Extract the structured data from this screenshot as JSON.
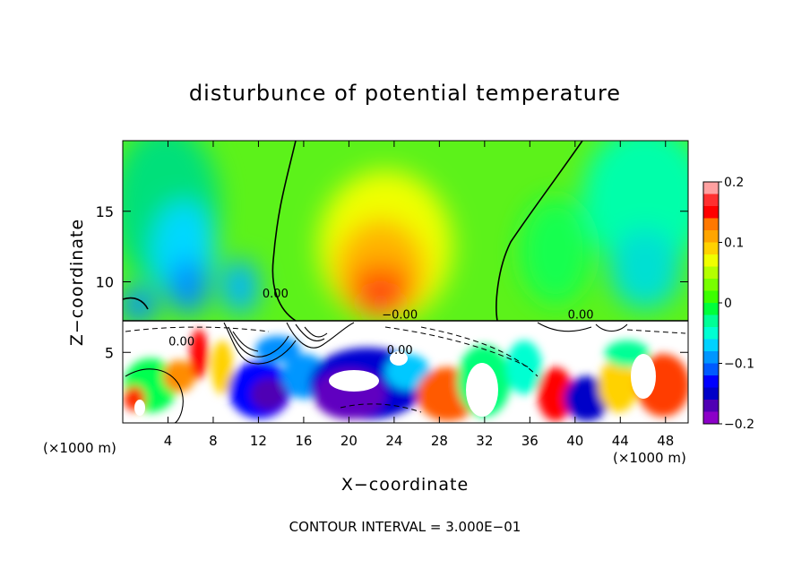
{
  "chart_data": {
    "type": "heatmap",
    "title": "disturbunce of potential temperature",
    "xlabel": "X−coordinate",
    "ylabel": "Z−coordinate",
    "x_unit_left": "(×1000 m)",
    "x_unit_right": "(×1000 m)",
    "xlim": [
      0,
      50
    ],
    "ylim": [
      0,
      20
    ],
    "x_ticks": [
      4,
      8,
      12,
      16,
      20,
      24,
      28,
      32,
      36,
      40,
      44,
      48
    ],
    "x_tick_labels": [
      "4",
      "8",
      "12",
      "16",
      "20",
      "24",
      "28",
      "32",
      "36",
      "40",
      "44",
      "48"
    ],
    "y_ticks": [
      5,
      10,
      15
    ],
    "y_tick_labels": [
      "5",
      "10",
      "15"
    ],
    "colorbar": {
      "min": -0.2,
      "max": 0.2,
      "ticks": [
        0.2,
        0.1,
        0,
        -0.1,
        -0.2
      ],
      "tick_labels": [
        "0.2",
        "0.1",
        "0",
        "−0.1",
        "−0.2"
      ],
      "colors": [
        "#ffa0a0",
        "#ff3030",
        "#ff0000",
        "#ff7800",
        "#ffa500",
        "#ffd200",
        "#f0ff00",
        "#b4ff00",
        "#78ff00",
        "#3cff00",
        "#00ff3c",
        "#00ff96",
        "#00ffd2",
        "#00d2ff",
        "#0096ff",
        "#005aff",
        "#0000ff",
        "#0000c8",
        "#5000b4",
        "#8c00c8"
      ]
    },
    "contour_labels": [
      {
        "text": "0.00",
        "x": 13.5,
        "y": 8.9
      },
      {
        "text": "−0.00",
        "x": 24.5,
        "y": 7.4
      },
      {
        "text": "0.00",
        "x": 40.5,
        "y": 7.4
      },
      {
        "text": "0.00",
        "x": 5.2,
        "y": 5.5
      },
      {
        "text": "0.00",
        "x": 24.5,
        "y": 4.9
      }
    ],
    "annotation": "CONTOUR INTERVAL = 3.000E−01"
  }
}
